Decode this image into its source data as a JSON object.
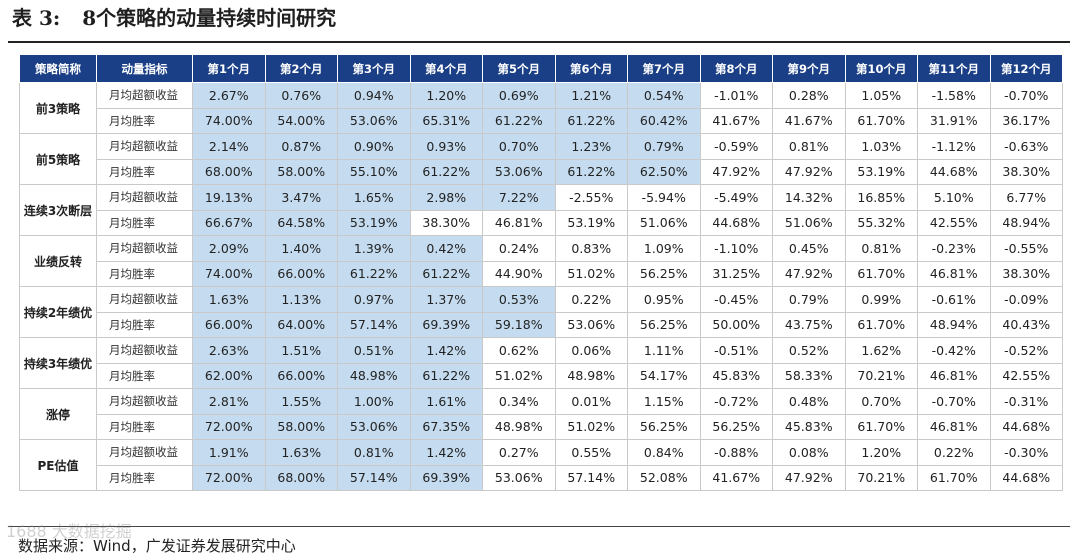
{
  "title": {
    "label": "表 3:",
    "text": "8个策略的动量持续时间研究"
  },
  "header": [
    "策略简称",
    "动量指标",
    "第1个月",
    "第2个月",
    "第3个月",
    "第4个月",
    "第5个月",
    "第6个月",
    "第7个月",
    "第8个月",
    "第9个月",
    "第10个月",
    "第11个月",
    "第12个月"
  ],
  "metric_labels": {
    "return": "月均超额收益",
    "winrate": "月均胜率"
  },
  "highlight_color": "#c5dcf0",
  "header_color": "#1a3f86",
  "strategies": [
    {
      "name": "前3策略",
      "return": [
        "2.67%",
        "0.76%",
        "0.94%",
        "1.20%",
        "0.69%",
        "1.21%",
        "0.54%",
        "-1.01%",
        "0.28%",
        "1.05%",
        "-1.58%",
        "-0.70%"
      ],
      "winrate": [
        "74.00%",
        "54.00%",
        "53.06%",
        "65.31%",
        "61.22%",
        "61.22%",
        "60.42%",
        "41.67%",
        "41.67%",
        "61.70%",
        "31.91%",
        "36.17%"
      ],
      "highlight_months": 7
    },
    {
      "name": "前5策略",
      "return": [
        "2.14%",
        "0.87%",
        "0.90%",
        "0.93%",
        "0.70%",
        "1.23%",
        "0.79%",
        "-0.59%",
        "0.81%",
        "1.03%",
        "-1.12%",
        "-0.63%"
      ],
      "winrate": [
        "68.00%",
        "58.00%",
        "55.10%",
        "61.22%",
        "53.06%",
        "61.22%",
        "62.50%",
        "47.92%",
        "47.92%",
        "53.19%",
        "44.68%",
        "38.30%"
      ],
      "highlight_months": 7
    },
    {
      "name": "连续3次断层",
      "return": [
        "19.13%",
        "3.47%",
        "1.65%",
        "2.98%",
        "7.22%",
        "-2.55%",
        "-5.94%",
        "-5.49%",
        "14.32%",
        "16.85%",
        "5.10%",
        "6.77%"
      ],
      "winrate": [
        "66.67%",
        "64.58%",
        "53.19%",
        "38.30%",
        "46.81%",
        "53.19%",
        "51.06%",
        "44.68%",
        "51.06%",
        "55.32%",
        "42.55%",
        "48.94%"
      ],
      "highlight_months": 5,
      "winrate_highlight_months": 3
    },
    {
      "name": "业绩反转",
      "return": [
        "2.09%",
        "1.40%",
        "1.39%",
        "0.42%",
        "0.24%",
        "0.83%",
        "1.09%",
        "-1.10%",
        "0.45%",
        "0.81%",
        "-0.23%",
        "-0.55%"
      ],
      "winrate": [
        "74.00%",
        "66.00%",
        "61.22%",
        "61.22%",
        "44.90%",
        "51.02%",
        "56.25%",
        "31.25%",
        "47.92%",
        "61.70%",
        "46.81%",
        "38.30%"
      ],
      "highlight_months": 4
    },
    {
      "name": "持续2年绩优",
      "return": [
        "1.63%",
        "1.13%",
        "0.97%",
        "1.37%",
        "0.53%",
        "0.22%",
        "0.95%",
        "-0.45%",
        "0.79%",
        "0.99%",
        "-0.61%",
        "-0.09%"
      ],
      "winrate": [
        "66.00%",
        "64.00%",
        "57.14%",
        "69.39%",
        "59.18%",
        "53.06%",
        "56.25%",
        "50.00%",
        "43.75%",
        "61.70%",
        "48.94%",
        "40.43%"
      ],
      "highlight_months": 5
    },
    {
      "name": "持续3年绩优",
      "return": [
        "2.63%",
        "1.51%",
        "0.51%",
        "1.42%",
        "0.62%",
        "0.06%",
        "1.11%",
        "-0.51%",
        "0.52%",
        "1.62%",
        "-0.42%",
        "-0.52%"
      ],
      "winrate": [
        "62.00%",
        "66.00%",
        "48.98%",
        "61.22%",
        "51.02%",
        "48.98%",
        "54.17%",
        "45.83%",
        "58.33%",
        "70.21%",
        "46.81%",
        "42.55%"
      ],
      "highlight_months": 4
    },
    {
      "name": "涨停",
      "return": [
        "2.81%",
        "1.55%",
        "1.00%",
        "1.61%",
        "0.34%",
        "0.01%",
        "1.15%",
        "-0.72%",
        "0.48%",
        "0.70%",
        "-0.70%",
        "-0.31%"
      ],
      "winrate": [
        "72.00%",
        "58.00%",
        "53.06%",
        "67.35%",
        "48.98%",
        "51.02%",
        "56.25%",
        "56.25%",
        "45.83%",
        "61.70%",
        "46.81%",
        "44.68%"
      ],
      "highlight_months": 4
    },
    {
      "name": "PE估值",
      "return": [
        "1.91%",
        "1.63%",
        "0.81%",
        "1.42%",
        "0.27%",
        "0.55%",
        "0.84%",
        "-0.88%",
        "0.08%",
        "1.20%",
        "0.22%",
        "-0.30%"
      ],
      "winrate": [
        "72.00%",
        "68.00%",
        "57.14%",
        "69.39%",
        "53.06%",
        "57.14%",
        "52.08%",
        "41.67%",
        "47.92%",
        "70.21%",
        "61.70%",
        "44.68%"
      ],
      "highlight_months": 4
    }
  ],
  "source": "数据来源：Wind，广发证券发展研究中心",
  "watermark": "1688 大数据挖掘"
}
